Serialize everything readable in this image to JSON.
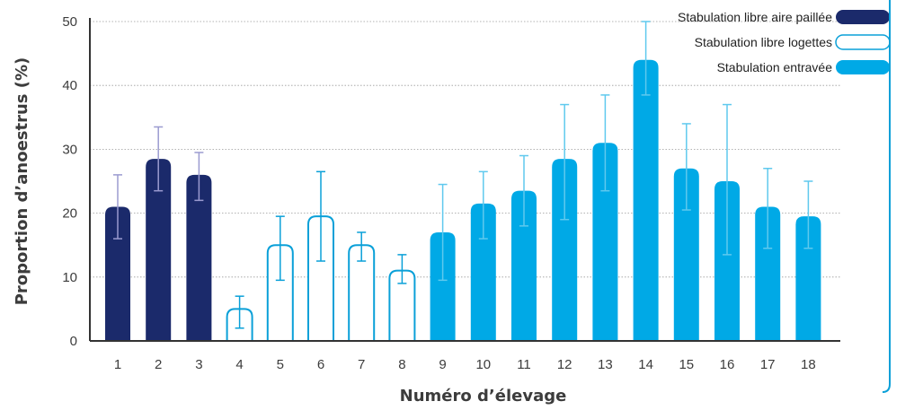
{
  "chart_data": {
    "type": "bar",
    "xlabel": "Numéro d’élevage",
    "ylabel": "Proportion d’anoestrus (%)",
    "ylim": [
      0,
      50
    ],
    "yticks": [
      0,
      10,
      20,
      30,
      40,
      50
    ],
    "grid": true,
    "legend_position": "top-right",
    "categories": [
      "1",
      "2",
      "3",
      "4",
      "5",
      "6",
      "7",
      "8",
      "9",
      "10",
      "11",
      "12",
      "13",
      "14",
      "15",
      "16",
      "17",
      "18"
    ],
    "values": [
      21,
      28.5,
      26,
      5,
      15,
      19.5,
      15,
      11,
      17,
      21.5,
      23.5,
      28.5,
      31,
      44,
      27,
      25,
      21,
      19.5
    ],
    "error_low": [
      16,
      23.5,
      22,
      2,
      9.5,
      12.5,
      12.5,
      9,
      9.5,
      16,
      18,
      19,
      23.5,
      38.5,
      20.5,
      13.5,
      14.5,
      14.5
    ],
    "error_high": [
      26,
      33.5,
      29.5,
      7,
      19.5,
      26.5,
      17,
      13.5,
      24.5,
      26.5,
      29,
      37,
      38.5,
      50,
      34,
      37,
      27,
      25
    ],
    "group_index": [
      0,
      0,
      0,
      1,
      1,
      1,
      1,
      1,
      2,
      2,
      2,
      2,
      2,
      2,
      2,
      2,
      2,
      2
    ],
    "series": [
      {
        "name": "Stabulation libre aire paillée",
        "color": "#1b2a6b",
        "fill": "#1b2a6b",
        "error_color": "#9b9bd0"
      },
      {
        "name": "Stabulation libre logettes",
        "color": "#0aa0d8",
        "fill": "#ffffff",
        "error_color": "#0aa0d8"
      },
      {
        "name": "Stabulation entravée",
        "color": "#00a9e6",
        "fill": "#00a9e6",
        "error_color": "#5fc9ee"
      }
    ]
  }
}
